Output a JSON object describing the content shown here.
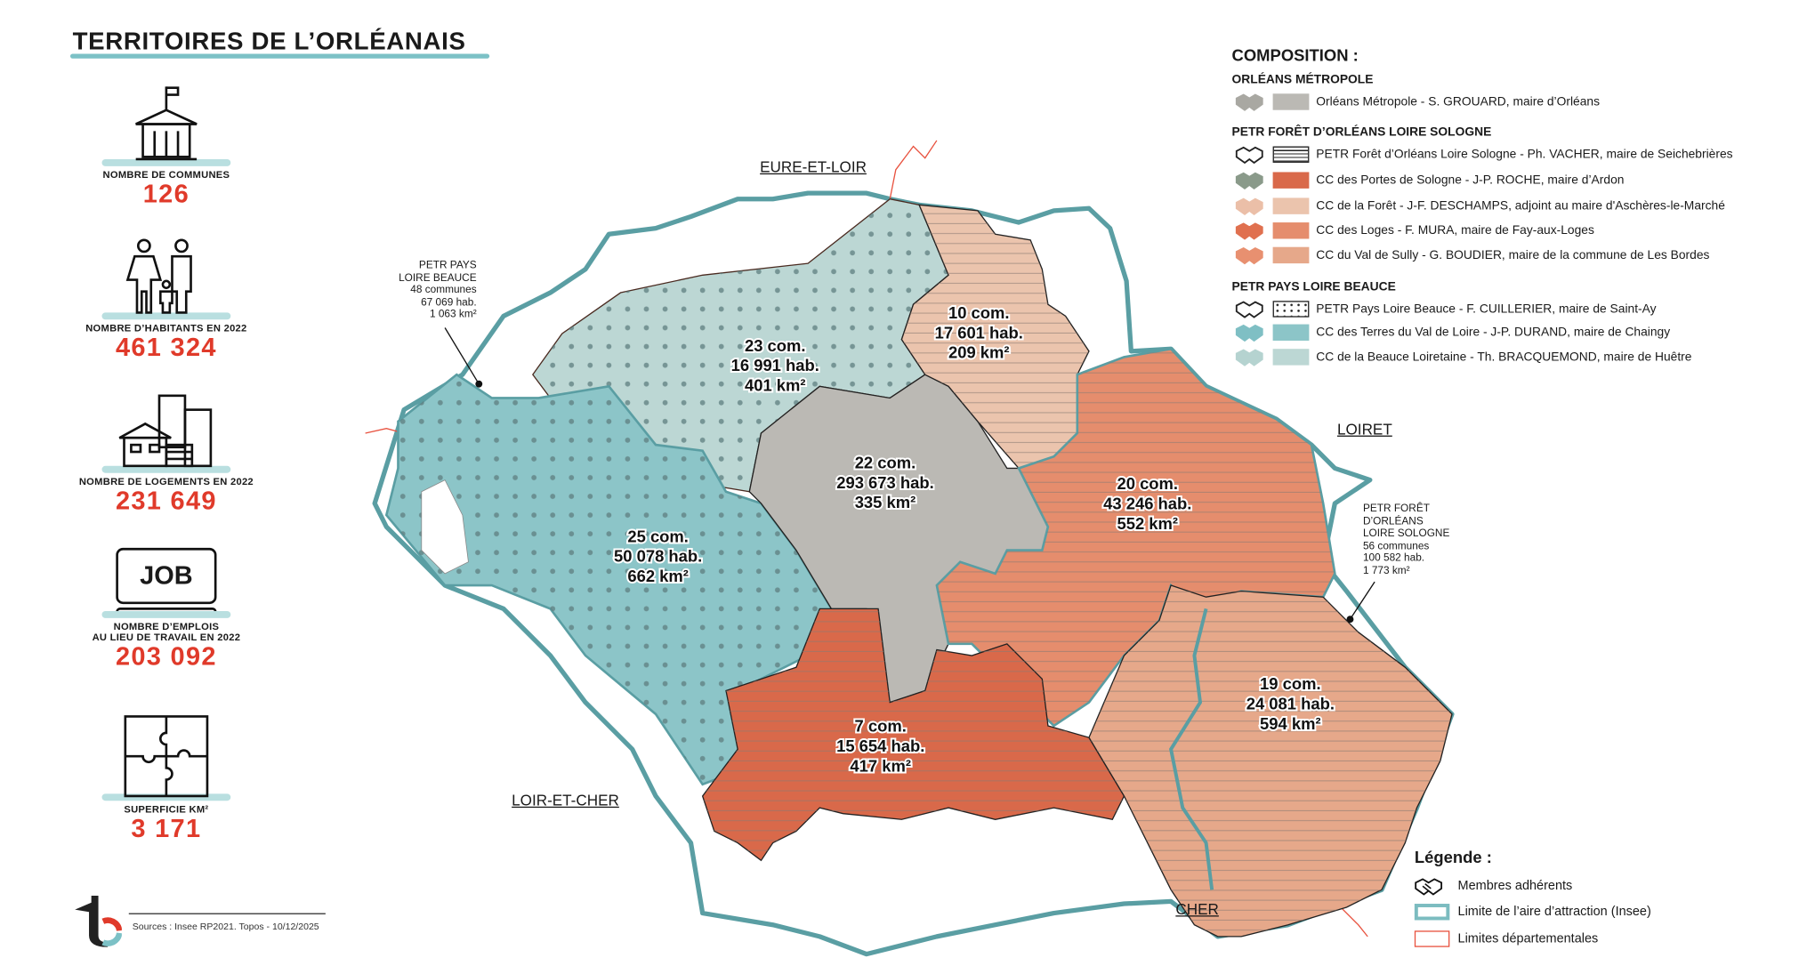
{
  "title": "TERRITOIRES DE L’ORLÉANAIS",
  "stats": [
    {
      "icon": "town-hall-icon",
      "label": "NOMBRE DE COMMUNES",
      "value": "126"
    },
    {
      "icon": "family-icon",
      "label": "NOMBRE D’HABITANTS EN 2022",
      "value": "461 324"
    },
    {
      "icon": "housing-icon",
      "label": "NOMBRE DE LOGEMENTS EN 2022",
      "value": "231 649"
    },
    {
      "icon": "job-computer-icon",
      "icon_text": "JOB",
      "label": "NOMBRE D’EMPLOIS",
      "label2": "AU LIEU DE TRAVAIL EN 2022",
      "value": "203 092"
    },
    {
      "icon": "puzzle-icon",
      "label": "SUPERFICIE KM²",
      "value": "3 171"
    }
  ],
  "footer": {
    "sources": "Sources : Insee RP2021. Topos - 10/12/2025"
  },
  "composition": {
    "title": "COMPOSITION :",
    "groups": [
      {
        "heading": "ORLÉANS MÉTROPOLE",
        "items": [
          {
            "label": "Orléans Métropole - S. GROUARD, maire d’Orléans",
            "color": "#bbb9b4",
            "icon_color": "#a9a8a2",
            "pattern": "solid"
          }
        ]
      },
      {
        "heading": "PETR FORÊT D’ORLÉANS LOIRE SOLOGNE",
        "items": [
          {
            "label": "PETR Forêt d’Orléans Loire Sologne - Ph. VACHER, maire de Seichebrières",
            "color": "#ffffff",
            "icon_color": "#222222",
            "pattern": "lines"
          },
          {
            "label": "CC des Portes de Sologne - J-P. ROCHE, maire d’Ardon",
            "color": "#d9694a",
            "icon_color": "#8a9a8a",
            "pattern": "solid"
          },
          {
            "label": "CC de la Forêt - J-F. DESCHAMPS, adjoint au maire d'Aschères-le-Marché",
            "color": "#ebc4ad",
            "icon_color": "#ebbfa8",
            "pattern": "solid"
          },
          {
            "label": "CC des Loges - F. MURA, maire de Fay-aux-Loges",
            "color": "#e58d6d",
            "icon_color": "#e0704f",
            "pattern": "solid"
          },
          {
            "label": "CC du Val de Sully - G. BOUDIER, maire de la commune de Les Bordes",
            "color": "#e6a88a",
            "icon_color": "#e89070",
            "pattern": "solid"
          }
        ]
      },
      {
        "heading": "PETR PAYS LOIRE BEAUCE",
        "items": [
          {
            "label": "PETR Pays Loire Beauce - F. CUILLERIER, maire de Saint-Ay",
            "color": "#ffffff",
            "icon_color": "#222222",
            "pattern": "dots"
          },
          {
            "label": "CC des Terres du Val de Loire - J-P. DURAND, maire de Chaingy",
            "color": "#8cc5c8",
            "icon_color": "#7fbfc4",
            "pattern": "solid"
          },
          {
            "label": "CC de la Beauce Loiretaine - Th. BRACQUEMOND, maire de Huêtre",
            "color": "#bcd7d4",
            "icon_color": "#b5d3d0",
            "pattern": "solid"
          }
        ]
      }
    ]
  },
  "departments": [
    "EURE-ET-LOIR",
    "LOIRET",
    "LOIR-ET-CHER",
    "CHER"
  ],
  "callouts": {
    "beauce": [
      "PETR PAYS",
      "LOIRE BEAUCE",
      "48 communes",
      "67 069 hab.",
      "1 063 km²"
    ],
    "foret": [
      "PETR FORÊT",
      "D’ORLÉANS",
      "LOIRE SOLOGNE",
      "56 communes",
      "100 582 hab.",
      "1 773 km²"
    ]
  },
  "regions": [
    {
      "name": "CC de la Beauce Loiretaine",
      "lines": [
        "23 com.",
        "16 991 hab.",
        "401 km²"
      ]
    },
    {
      "name": "CC de la Forêt",
      "lines": [
        "10 com.",
        "17 601 hab.",
        "209 km²"
      ]
    },
    {
      "name": "Orléans Métropole",
      "lines": [
        "22 com.",
        "293 673 hab.",
        "335 km²"
      ]
    },
    {
      "name": "CC des Loges",
      "lines": [
        "20 com.",
        "43 246 hab.",
        "552 km²"
      ]
    },
    {
      "name": "CC des Terres du Val de Loire",
      "lines": [
        "25 com.",
        "50 078 hab.",
        "662 km²"
      ]
    },
    {
      "name": "CC des Portes de Sologne",
      "lines": [
        "7 com.",
        "15 654 hab.",
        "417 km²"
      ]
    },
    {
      "name": "CC du Val de Sully",
      "lines": [
        "19 com.",
        "24 081 hab.",
        "594 km²"
      ]
    }
  ],
  "legend": {
    "title": "Légende :",
    "items": [
      {
        "label": "Membres adhérents",
        "icon": "handshake-icon"
      },
      {
        "label": "Limite de l’aire d’attraction (Insee)",
        "color": "#7cbcc0"
      },
      {
        "label": "Limites départementales",
        "color": "#e8523f"
      }
    ]
  },
  "colors": {
    "accent_red": "#e03a2a",
    "teal_border": "#5a9ea3",
    "title_underline": "#7cc1c6"
  }
}
